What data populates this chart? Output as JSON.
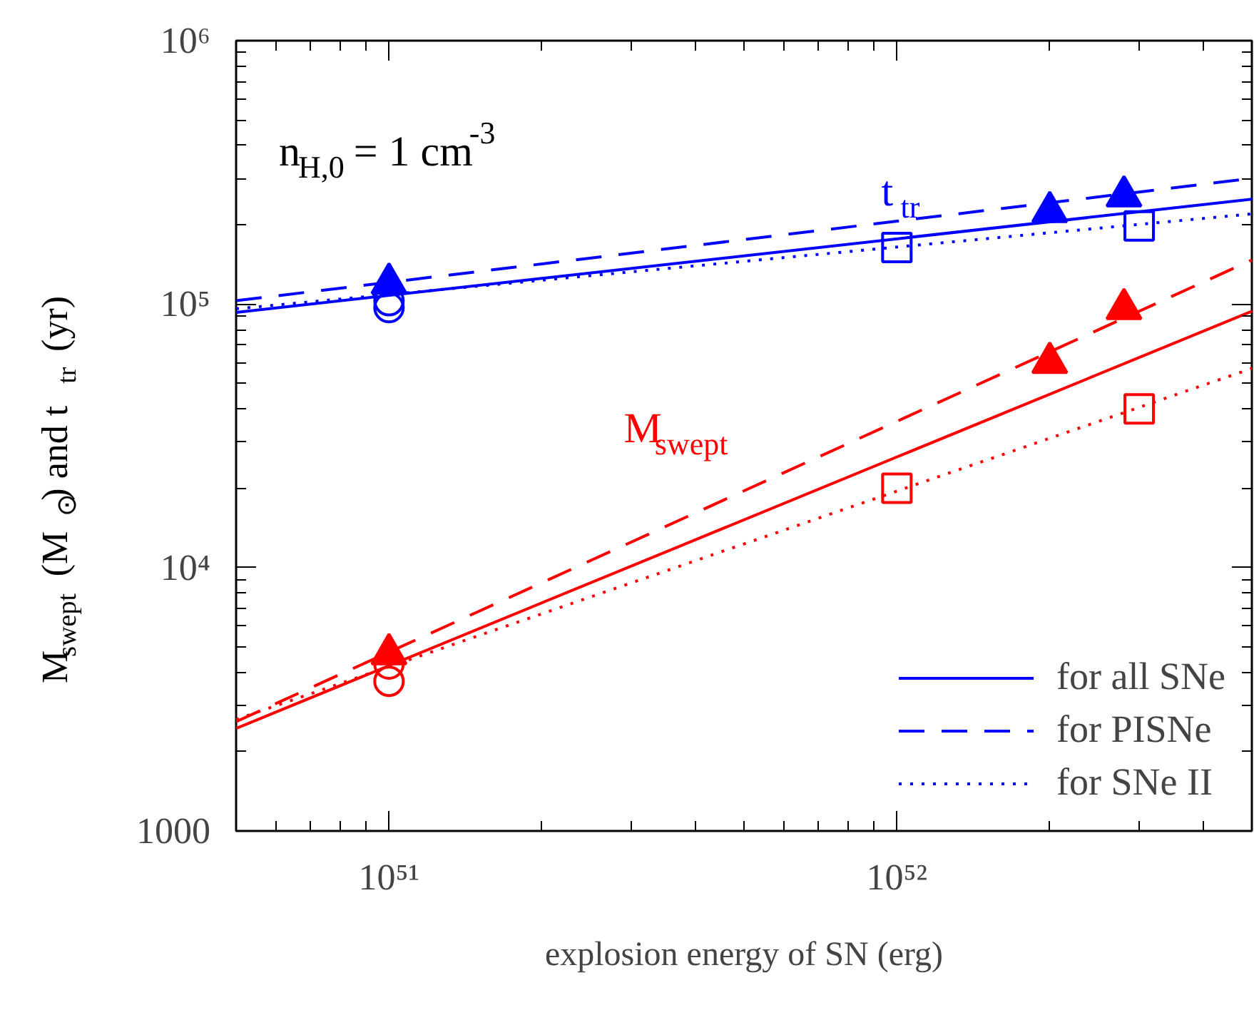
{
  "chart_data": {
    "type": "line",
    "xlabel": "explosion energy of SN (erg)",
    "ylabel": "M$_{swept}$ (M$_{⊙}$) and t$_{tr}$ (yr)",
    "log": "xy",
    "grid": false,
    "legend": "bottom right",
    "xlim": [
      5e+50,
      5e+52
    ],
    "ylim": [
      1000,
      1000000
    ],
    "xticks": [
      {
        "value": 1e+51,
        "label": "10⁵¹"
      },
      {
        "value": 1e+52,
        "label": "10⁵²"
      }
    ],
    "yticks": [
      1000,
      {
        "value": 10000,
        "label": "10⁴"
      },
      {
        "value": 100000,
        "label": "10⁵"
      },
      {
        "value": 1000000,
        "label": "10⁶"
      }
    ],
    "annotations": [
      "n$_{H,0}$= 1 cm$^{-3}$",
      "t$_{tr}$",
      "M$_{swept}$"
    ],
    "series": [
      {
        "name": "for all SNe",
        "color": "#0000ff",
        "line_style": "solid",
        "x": [
          5e+50,
          5e+52
        ],
        "values": [
          93000,
          250000
        ]
      },
      {
        "name": "for PISNe",
        "color": "#0000ff",
        "line_style": "dashed",
        "x": [
          5e+50,
          5e+52
        ],
        "values": [
          103000,
          300000
        ]
      },
      {
        "name": "for SNe II",
        "color": "#0000ff",
        "line_style": "dotted",
        "x": [
          5e+50,
          5e+52
        ],
        "values": [
          96000,
          220000
        ]
      },
      {
        "color": "#ff0000",
        "line_style": "solid",
        "x": [
          5e+50,
          5e+52
        ],
        "values": [
          2450,
          94000
        ]
      },
      {
        "color": "#ff0000",
        "line_style": "dashed",
        "x": [
          5e+50,
          5e+52
        ],
        "values": [
          2600,
          147000
        ]
      },
      {
        "color": "#ff0000",
        "line_style": "dotted",
        "x": [
          5e+50,
          5e+52
        ],
        "values": [
          2650,
          57000
        ]
      },
      {
        "type": "scatter",
        "marker": "circle",
        "color": "#0000ff",
        "x": [
          1e+51,
          1e+51
        ],
        "values": [
          103000,
          97000
        ]
      },
      {
        "type": "scatter",
        "marker": "triangle",
        "color": "#0000ff",
        "x": [
          1e+51,
          2e+52,
          2.8e+52
        ],
        "values": [
          120000,
          224000,
          257000
        ]
      },
      {
        "type": "scatter",
        "marker": "square",
        "color": "#0000ff",
        "x": [
          1e+52,
          3e+52
        ],
        "values": [
          164000,
          198000
        ]
      },
      {
        "type": "scatter",
        "marker": "circle",
        "color": "#ff0000",
        "x": [
          1e+51,
          1e+51
        ],
        "values": [
          4300,
          3700
        ]
      },
      {
        "type": "scatter",
        "marker": "triangle",
        "color": "#ff0000",
        "x": [
          1e+51,
          2e+52,
          2.8e+52
        ],
        "values": [
          4700,
          60000,
          96000
        ]
      },
      {
        "type": "scatter",
        "marker": "square",
        "color": "#ff0000",
        "x": [
          1e+52,
          3e+52
        ],
        "values": [
          20000,
          40000
        ]
      }
    ]
  }
}
